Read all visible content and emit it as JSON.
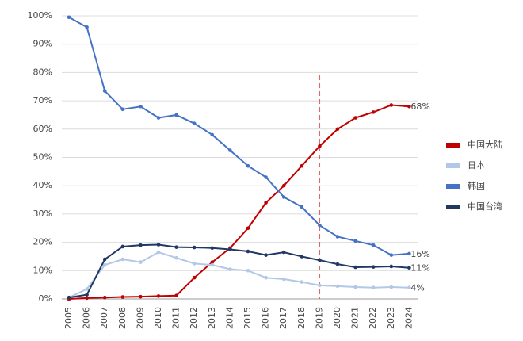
{
  "chart_data": {
    "type": "line",
    "categories": [
      "2005",
      "2006",
      "2007",
      "2008",
      "2009",
      "2010",
      "2011",
      "2012",
      "2013",
      "2014",
      "2015",
      "2016",
      "2017",
      "2018",
      "2019",
      "2020",
      "2021",
      "2022",
      "2023",
      "2024"
    ],
    "series": [
      {
        "name": "中国大陆",
        "color": "#c00000",
        "values": [
          0,
          0.3,
          0.5,
          0.7,
          0.8,
          1,
          1.2,
          7.5,
          13,
          18,
          25,
          34,
          40,
          47,
          54,
          60,
          64,
          66,
          68.5,
          68
        ],
        "value_labels": [
          null,
          null,
          null,
          null,
          null,
          null,
          null,
          null,
          null,
          null,
          null,
          null,
          null,
          null,
          null,
          null,
          null,
          null,
          null,
          "68%"
        ]
      },
      {
        "name": "日本",
        "color": "#b4c7e7",
        "values": [
          0.5,
          3.5,
          12,
          14,
          13,
          16.5,
          14.5,
          12.5,
          12,
          10.5,
          10,
          7.5,
          7,
          6,
          4.8,
          4.5,
          4.2,
          4,
          4.2,
          4
        ],
        "value_labels": [
          null,
          null,
          null,
          null,
          null,
          null,
          null,
          null,
          null,
          null,
          null,
          null,
          null,
          null,
          null,
          null,
          null,
          null,
          null,
          "4%"
        ]
      },
      {
        "name": "韩国",
        "color": "#4472c4",
        "values": [
          99.5,
          96,
          73.5,
          67,
          68,
          64,
          65,
          62,
          58,
          52.5,
          47,
          43,
          36,
          32.5,
          26,
          22,
          20.5,
          19,
          15.5,
          16
        ],
        "value_labels": [
          null,
          null,
          null,
          null,
          null,
          null,
          null,
          null,
          null,
          null,
          null,
          null,
          null,
          null,
          null,
          null,
          null,
          null,
          null,
          "16%"
        ]
      },
      {
        "name": "中国台湾",
        "color": "#203864",
        "values": [
          0.5,
          1.5,
          14,
          18.5,
          19,
          19.2,
          18.3,
          18.2,
          18,
          17.5,
          16.8,
          15.5,
          16.5,
          15,
          13.7,
          12.3,
          11.2,
          11.3,
          11.5,
          11
        ],
        "value_labels": [
          null,
          null,
          null,
          null,
          null,
          null,
          null,
          null,
          null,
          null,
          null,
          null,
          null,
          null,
          null,
          null,
          null,
          null,
          null,
          "11%"
        ]
      }
    ],
    "ylim": [
      0,
      100
    ],
    "yticks": [
      {
        "value": 0,
        "label": "0%"
      },
      {
        "value": 10,
        "label": "10%"
      },
      {
        "value": 20,
        "label": "20%"
      },
      {
        "value": 30,
        "label": "30%"
      },
      {
        "value": 40,
        "label": "40%"
      },
      {
        "value": 50,
        "label": "50%"
      },
      {
        "value": 60,
        "label": "60%"
      },
      {
        "value": 70,
        "label": "70%"
      },
      {
        "value": 80,
        "label": "80%"
      },
      {
        "value": 90,
        "label": "90%"
      },
      {
        "value": 100,
        "label": "100%"
      }
    ],
    "grid": true,
    "reference_line": {
      "x": "2019",
      "color": "#e06666"
    },
    "legend": "right"
  }
}
